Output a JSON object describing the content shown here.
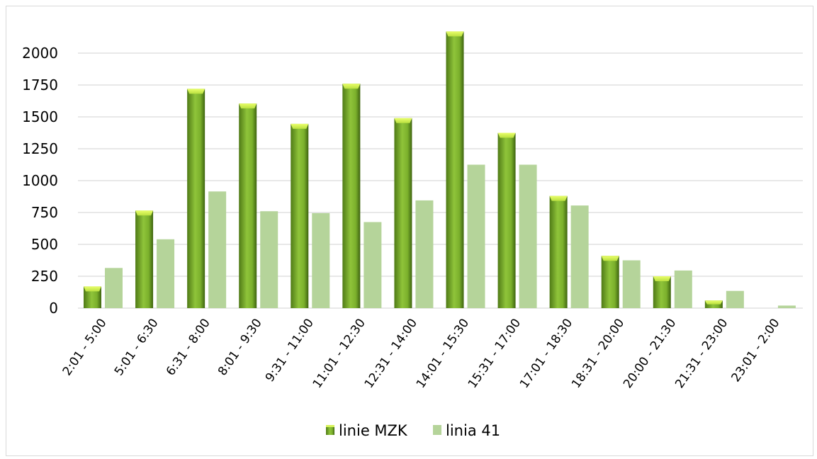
{
  "chart_data": {
    "type": "bar",
    "categories": [
      "2:01 - 5:00",
      "5:01 - 6:30",
      "6:31 - 8:00",
      "8:01 - 9:30",
      "9:31 - 11:00",
      "11:01 - 12:30",
      "12:31 - 14:00",
      "14:01 - 15:30",
      "15:31 - 17:00",
      "17:01 - 18:30",
      "18:31 - 20:00",
      "20:00 - 21:30",
      "21:31 - 23:00",
      "23:01 - 2:00"
    ],
    "series": [
      {
        "name": "linie MZK",
        "values": [
          170,
          765,
          1720,
          1605,
          1445,
          1760,
          1490,
          2170,
          1375,
          880,
          410,
          250,
          60,
          0
        ]
      },
      {
        "name": "linia 41",
        "values": [
          315,
          540,
          915,
          760,
          745,
          675,
          845,
          1125,
          1125,
          805,
          375,
          295,
          135,
          20
        ]
      }
    ],
    "yticks": [
      "0",
      "250",
      "500",
      "750",
      "1000",
      "1250",
      "1500",
      "1750",
      "2000"
    ],
    "ylim": [
      0,
      2250
    ],
    "grid": true,
    "legend_position": "bottom",
    "title": "",
    "xlabel": "",
    "ylabel": "",
    "colors": {
      "linie MZK": "#8cc63f",
      "linia 41": "#b5d49a"
    }
  }
}
